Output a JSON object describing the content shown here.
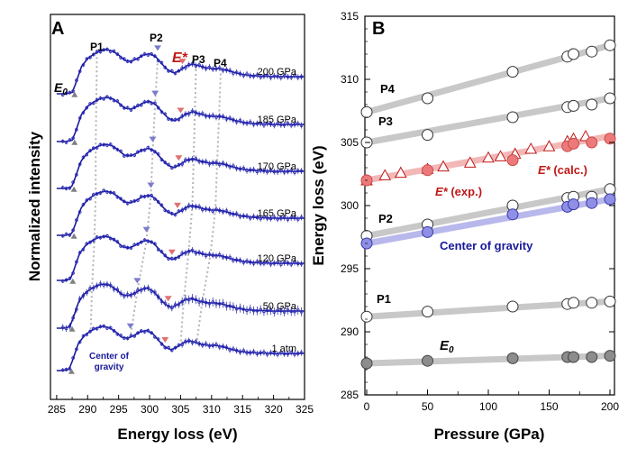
{
  "chart_data": [
    {
      "type": "line",
      "panel_label": "A",
      "xlabel": "Energy loss (eV)",
      "ylabel": "Normalized intensity",
      "xlim": [
        284,
        325
      ],
      "xticks": [
        "285",
        "290",
        "295",
        "300",
        "305",
        "310",
        "315",
        "320",
        "325"
      ],
      "peak_labels": [
        "P1",
        "P2",
        "P3",
        "P4"
      ],
      "e0_label": "E",
      "e0_sub": "0",
      "estar_label": "E*",
      "cog_label_line1": "Center of",
      "cog_label_line2": "gravity",
      "spectrum_template_x": [
        285,
        286,
        287,
        287.5,
        288.5,
        289.5,
        290.5,
        291.5,
        292.5,
        293.5,
        294.5,
        295.5,
        296.5,
        297.5,
        298.5,
        299.5,
        300.5,
        301.5,
        302.5,
        303.5,
        304.5,
        305.5,
        306.5,
        307.5,
        308.5,
        309.5,
        310.5,
        311.5,
        312.5,
        313.5,
        314.5,
        315.5,
        316.5,
        317.5,
        318.5,
        319.5,
        320.5,
        321.5,
        322.5,
        323.5,
        324.5,
        325
      ],
      "spectrum_template_y": [
        0.02,
        0.02,
        0.05,
        0.22,
        0.62,
        0.8,
        0.9,
        0.97,
        1.0,
        0.97,
        0.88,
        0.76,
        0.74,
        0.8,
        0.88,
        0.91,
        0.84,
        0.68,
        0.54,
        0.48,
        0.55,
        0.64,
        0.68,
        0.64,
        0.6,
        0.58,
        0.58,
        0.56,
        0.52,
        0.48,
        0.45,
        0.43,
        0.42,
        0.41,
        0.41,
        0.4,
        0.4,
        0.4,
        0.4,
        0.4,
        0.4,
        0.4
      ],
      "series": [
        {
          "name": "200 GPa",
          "pressure_gpa": 200,
          "e0": 287.9,
          "p1": 291.5,
          "p2": 301.3,
          "e_star": 305.3,
          "p3": 307.5,
          "p4": 311.5
        },
        {
          "name": "185 GPa",
          "pressure_gpa": 185,
          "e0": 287.9,
          "p1": 291.4,
          "p2": 300.9,
          "e_star": 305.0,
          "p3": 307.3,
          "p4": 311.2
        },
        {
          "name": "170 GPa",
          "pressure_gpa": 170,
          "e0": 287.8,
          "p1": 291.3,
          "p2": 300.5,
          "e_star": 304.7,
          "p3": 307.1,
          "p4": 310.9
        },
        {
          "name": "165 GPa",
          "pressure_gpa": 165,
          "e0": 287.8,
          "p1": 291.3,
          "p2": 300.2,
          "e_star": 304.5,
          "p3": 306.9,
          "p4": 310.6
        },
        {
          "name": "120 GPa",
          "pressure_gpa": 120,
          "e0": 287.6,
          "p1": 291.1,
          "p2": 299.5,
          "e_star": 303.6,
          "p3": 306.3,
          "p4": 309.8
        },
        {
          "name": "50 GPa",
          "pressure_gpa": 50,
          "e0": 287.5,
          "p1": 290.7,
          "p2": 298.0,
          "e_star": 303.0,
          "p3": 305.5,
          "p4": 308.5
        },
        {
          "name": "1 atm",
          "pressure_gpa": 0,
          "e0": 287.4,
          "p1": 290.5,
          "p2": 296.9,
          "e_star": 302.5,
          "p3": 305.0,
          "p4": 307.6
        }
      ]
    },
    {
      "type": "scatter",
      "panel_label": "B",
      "xlabel": "Pressure (GPa)",
      "ylabel": "Energy loss (eV)",
      "xlim": [
        0,
        200
      ],
      "ylim": [
        285,
        315
      ],
      "xticks": [
        "0",
        "50",
        "100",
        "150",
        "200"
      ],
      "yticks": [
        "285",
        "290",
        "295",
        "300",
        "305",
        "310",
        "315"
      ],
      "series": [
        {
          "name": "P4",
          "marker": "open-circle",
          "x": [
            0,
            50,
            120,
            165,
            170,
            185,
            200
          ],
          "y": [
            307.4,
            308.5,
            310.6,
            311.8,
            312.0,
            312.2,
            312.7
          ],
          "fit": [
            [
              0,
              307.4
            ],
            [
              200,
              312.7
            ]
          ]
        },
        {
          "name": "P3",
          "marker": "open-circle",
          "x": [
            0,
            50,
            120,
            165,
            170,
            185,
            200
          ],
          "y": [
            305.0,
            305.6,
            307.0,
            307.8,
            307.9,
            308.0,
            308.5
          ],
          "fit": [
            [
              0,
              305.0
            ],
            [
              200,
              308.5
            ]
          ]
        },
        {
          "name": "E* (calc.)",
          "marker": "open-triangle",
          "x": [
            0,
            15,
            28,
            50,
            63,
            85,
            100,
            110,
            122,
            135,
            150,
            165,
            170,
            180
          ],
          "y": [
            302.0,
            302.4,
            302.6,
            302.9,
            303.1,
            303.4,
            303.8,
            303.9,
            304.1,
            304.5,
            304.7,
            305.1,
            305.3,
            305.5
          ]
        },
        {
          "name": "E* (exp.)",
          "marker": "filled-circle-red",
          "x": [
            0,
            50,
            120,
            165,
            170,
            185,
            200
          ],
          "y": [
            302.0,
            302.8,
            303.6,
            304.7,
            304.9,
            305.0,
            305.3
          ],
          "fit": [
            [
              0,
              302.0
            ],
            [
              200,
              305.5
            ]
          ]
        },
        {
          "name": "P2",
          "marker": "open-circle",
          "x": [
            0,
            50,
            120,
            165,
            170,
            185,
            200
          ],
          "y": [
            297.6,
            298.5,
            300.0,
            300.6,
            300.7,
            300.7,
            301.3
          ],
          "fit": [
            [
              0,
              297.6
            ],
            [
              200,
              301.3
            ]
          ]
        },
        {
          "name": "Center of gravity",
          "marker": "filled-circle-blue",
          "x": [
            0,
            50,
            120,
            165,
            170,
            185,
            200
          ],
          "y": [
            297.0,
            297.9,
            299.3,
            299.9,
            300.1,
            300.2,
            300.5
          ],
          "fit": [
            [
              0,
              297.0
            ],
            [
              200,
              300.5
            ]
          ]
        },
        {
          "name": "P1",
          "marker": "open-circle",
          "x": [
            0,
            50,
            120,
            165,
            170,
            185,
            200
          ],
          "y": [
            291.2,
            291.6,
            292.0,
            292.2,
            292.3,
            292.3,
            292.4
          ],
          "fit": [
            [
              0,
              291.2
            ],
            [
              200,
              292.4
            ]
          ]
        },
        {
          "name": "E0",
          "marker": "filled-circle-gray",
          "x": [
            0,
            50,
            120,
            165,
            170,
            185,
            200
          ],
          "y": [
            287.5,
            287.7,
            287.9,
            288.0,
            288.0,
            288.0,
            288.1
          ],
          "fit": [
            [
              0,
              287.5
            ],
            [
              200,
              288.1
            ]
          ]
        }
      ],
      "labels": {
        "p4": "P4",
        "p3": "P3",
        "p2": "P2",
        "p1": "P1",
        "e_star": "E*",
        "calc": " (calc.)",
        "exp": " (exp.)",
        "cog": "Center of gravity",
        "e0": "E",
        "e0_sub": "0"
      }
    }
  ],
  "colors": {
    "spectrum": "#1a1a9c",
    "spectrum_marker": "#2a2ab8",
    "blue_tri": "#7c7ccc",
    "red_tri": "#e07070",
    "gray_tri": "#808080",
    "guide": "#b4b4b4",
    "fit_gray": "#c8c8c8",
    "fit_red": "#f2b8b8",
    "fit_blue": "#b8b8ec",
    "red_text": "#c01818",
    "blue_text": "#18189a",
    "red_fill": "#ec7a7a",
    "blue_fill": "#8f8fe6",
    "gray_fill": "#8c8c8c"
  }
}
